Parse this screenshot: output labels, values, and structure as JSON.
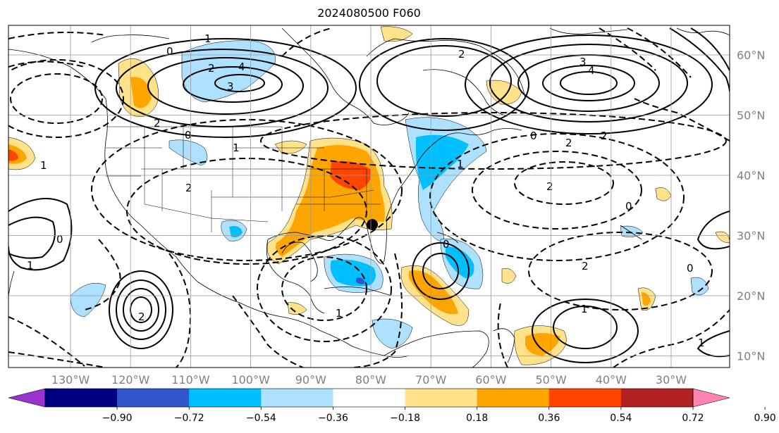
{
  "title": "2024080500 F060",
  "lon_ticks": [
    "130°W",
    "120°W",
    "110°W",
    "100°W",
    "90°W",
    "80°W",
    "70°W",
    "60°W",
    "50°W",
    "40°W",
    "30°W"
  ],
  "lat_ticks": [
    "60°N",
    "50°N",
    "40°N",
    "30°N",
    "20°N",
    "10°N"
  ],
  "contour_labels": [
    "0",
    "1",
    "2",
    "3",
    "4",
    "2",
    "0",
    "1",
    "2",
    "3",
    "4",
    "1",
    "2",
    "0",
    "2",
    "2",
    "1",
    "0",
    "1",
    "2",
    "2",
    "0",
    "0",
    "1",
    "1",
    "0",
    "1",
    "2"
  ],
  "colorbar": {
    "labels": [
      "−0.90",
      "−0.72",
      "−0.54",
      "−0.36",
      "−0.18",
      "0.18",
      "0.36",
      "0.54",
      "0.72",
      "0.90"
    ],
    "colors": [
      "#9933cc",
      "#000080",
      "#3355cc",
      "#00bfff",
      "#aee0ff",
      "#ffffff",
      "#ffe28a",
      "#ffa500",
      "#ff4500",
      "#b22222",
      "#ff85b0"
    ]
  },
  "fill_colors": {
    "neg_light": "#aee0ff",
    "neg_mid": "#00bfff",
    "neg_dark": "#3355cc",
    "pos_light": "#ffe28a",
    "pos_mid": "#ffa500",
    "pos_dark": "#ff4500"
  }
}
